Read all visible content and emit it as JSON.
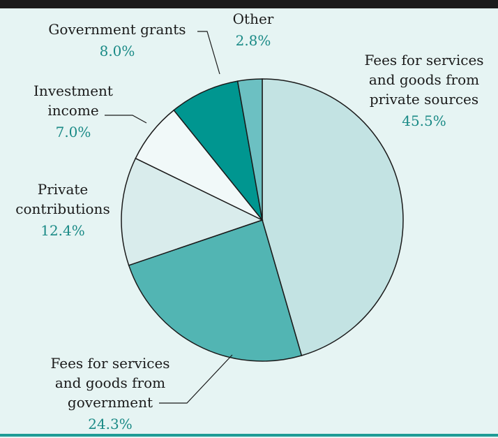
{
  "chart_data": {
    "type": "pie",
    "start_angle_deg": 0,
    "direction": "clockwise",
    "slices": [
      {
        "label_lines": [
          "Fees for services",
          "and goods from",
          "private sources"
        ],
        "value": 45.5,
        "value_text": "45.5%",
        "color": "#c3e3e3"
      },
      {
        "label_lines": [
          "Fees for services",
          "and goods from",
          "government"
        ],
        "value": 24.3,
        "value_text": "24.3%",
        "color": "#52b5b3"
      },
      {
        "label_lines": [
          "Private",
          "contributions"
        ],
        "value": 12.4,
        "value_text": "12.4%",
        "color": "#d9ecec"
      },
      {
        "label_lines": [
          "Investment",
          "income"
        ],
        "value": 7.0,
        "value_text": "7.0%",
        "color": "#f1f9f9"
      },
      {
        "label_lines": [
          "Government grants"
        ],
        "value": 8.0,
        "value_text": "8.0%",
        "color": "#009690"
      },
      {
        "label_lines": [
          "Other"
        ],
        "value": 2.8,
        "value_text": "2.8%",
        "color": "#6cc0c2"
      }
    ]
  },
  "colors": {
    "background": "#e6f4f3",
    "value_text": "#1a8a86",
    "slice_outline": "#1a1a1a",
    "top_rule": "#1c1c1c",
    "bottom_rule": "#1e9c96"
  }
}
